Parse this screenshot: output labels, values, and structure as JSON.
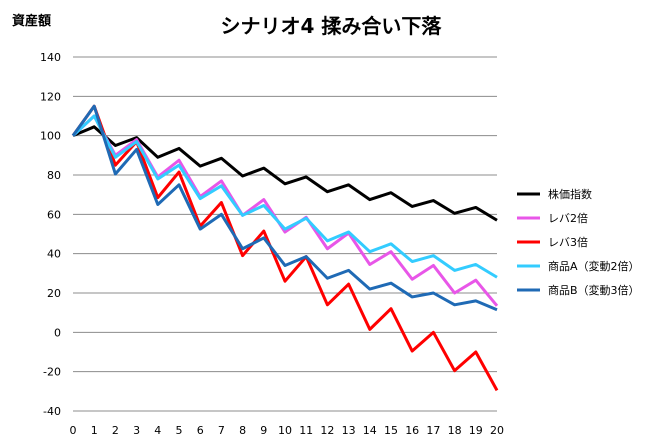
{
  "chart_data": {
    "type": "line",
    "title": "シナリオ4 揉み合い下落",
    "ylabel": "資産額",
    "xlabel": "",
    "ylim": [
      -40,
      140
    ],
    "yticks": [
      140,
      120,
      100,
      80,
      60,
      40,
      20,
      0,
      -20,
      -40
    ],
    "x": [
      0,
      1,
      2,
      3,
      4,
      5,
      6,
      7,
      8,
      9,
      10,
      11,
      12,
      13,
      14,
      15,
      16,
      17,
      18,
      19,
      20
    ],
    "grid": "horizontal",
    "legend_position": "right",
    "series": [
      {
        "name": "株価指数",
        "color": "#000000",
        "values": [
          100,
          104.5,
          95,
          99,
          89,
          93.5,
          84.5,
          88.5,
          79.5,
          83.5,
          75.5,
          79,
          71.5,
          75,
          67.5,
          71,
          64,
          67,
          60.5,
          63.5,
          57
        ]
      },
      {
        "name": "レバ2倍",
        "color": "#e856e8",
        "values": [
          100,
          110,
          90,
          98,
          79,
          87.5,
          69,
          77,
          59.5,
          67.5,
          51,
          58.5,
          42.5,
          50.5,
          34.5,
          41,
          27,
          34,
          20,
          26.5,
          13.5
        ]
      },
      {
        "name": "レバ3倍",
        "color": "#ff0000",
        "values": [
          100,
          115,
          85,
          97,
          68.5,
          81.5,
          54,
          66,
          39,
          51.5,
          26,
          38.5,
          14,
          24.5,
          1.5,
          12,
          -9.5,
          0,
          -19.5,
          -10,
          -29.5
        ]
      },
      {
        "name": "商品A（変動2倍）",
        "color": "#33ccff",
        "values": [
          100,
          110,
          89,
          97,
          78,
          85,
          68,
          74.5,
          59.5,
          64.5,
          52.5,
          58,
          46.5,
          51,
          41,
          45,
          36,
          39,
          31.5,
          34.5,
          28
        ]
      },
      {
        "name": "商品B（変動3倍）",
        "color": "#1f6ab5",
        "values": [
          100,
          115,
          80.5,
          93,
          65,
          75,
          52.5,
          60,
          42.5,
          48,
          34,
          38.5,
          27.5,
          31.5,
          22,
          25,
          18,
          20,
          14,
          16,
          11.5
        ]
      }
    ]
  }
}
